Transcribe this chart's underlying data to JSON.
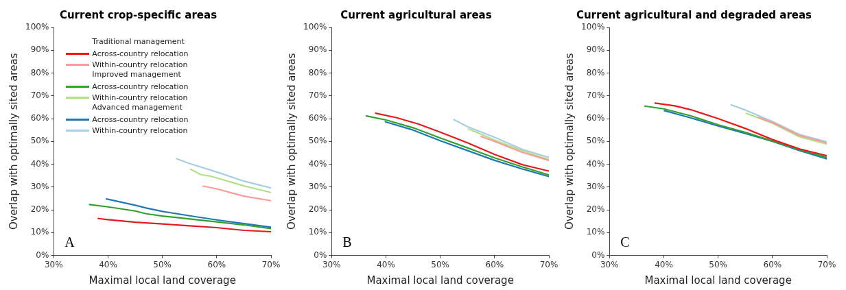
{
  "chart_data": [
    {
      "type": "line",
      "title": "Current crop-specific areas",
      "xlabel": "Maximal local land coverage",
      "ylabel": "Overlap with optimally sited areas",
      "xlim": [
        30,
        70
      ],
      "ylim": [
        0,
        100
      ],
      "xticks": [
        {
          "value": 30,
          "label": "30%"
        },
        {
          "value": 40,
          "label": "40%"
        },
        {
          "value": 50,
          "label": "50%"
        },
        {
          "value": 60,
          "label": "60%"
        },
        {
          "value": 70,
          "label": "70%"
        }
      ],
      "yticks": [
        {
          "value": 0,
          "label": "0%"
        },
        {
          "value": 10,
          "label": "10%"
        },
        {
          "value": 20,
          "label": "20%"
        },
        {
          "value": 30,
          "label": "30%"
        },
        {
          "value": 40,
          "label": "40%"
        },
        {
          "value": 50,
          "label": "50%"
        },
        {
          "value": 60,
          "label": "60%"
        },
        {
          "value": 70,
          "label": "70%"
        },
        {
          "value": 80,
          "label": "80%"
        },
        {
          "value": 90,
          "label": "90%"
        },
        {
          "value": 100,
          "label": "100%"
        }
      ],
      "grid": false,
      "marker": "none",
      "line_style": "solid",
      "legend": "top left",
      "annotations": [
        "A",
        "Traditional management",
        "Improved management",
        "Advanced management"
      ],
      "series": [
        {
          "name": "Across-country relocation",
          "color": "#e41a1c",
          "x": [
            38.2,
            40,
            45,
            50,
            55,
            60,
            65,
            70
          ],
          "values": [
            16.2,
            15.7,
            14.6,
            13.8,
            13.0,
            12.2,
            11.0,
            10.4
          ]
        },
        {
          "name": "Within-country relocation",
          "color": "#fb9a99",
          "x": [
            57.5,
            60,
            65,
            70
          ],
          "values": [
            30.4,
            29.2,
            26.0,
            24.0
          ]
        },
        {
          "name": "Across-country relocation",
          "color": "#33a02c",
          "x": [
            36.6,
            40,
            45,
            47,
            50,
            55,
            60,
            65,
            70
          ],
          "values": [
            22.3,
            21.3,
            19.5,
            18.3,
            17.3,
            16.0,
            14.7,
            13.4,
            11.8
          ]
        },
        {
          "name": "Within-country relocation",
          "color": "#b2df8a",
          "x": [
            55.2,
            57,
            59,
            60,
            65,
            70
          ],
          "values": [
            37.8,
            35.5,
            34.7,
            34.0,
            30.5,
            27.6
          ]
        },
        {
          "name": "Across-country relocation",
          "color": "#1f78b4",
          "x": [
            39.7,
            45,
            47,
            50,
            55,
            60,
            65,
            70
          ],
          "values": [
            24.8,
            22.0,
            20.8,
            19.3,
            17.4,
            15.6,
            14.0,
            12.4
          ]
        },
        {
          "name": "Within-country relocation",
          "color": "#a6cee3",
          "x": [
            52.6,
            55,
            60,
            65,
            70
          ],
          "values": [
            42.4,
            40.3,
            36.6,
            32.6,
            29.6
          ]
        }
      ]
    },
    {
      "type": "line",
      "title": "Current agricultural areas",
      "xlabel": "Maximal local land coverage",
      "ylabel": "Overlap with optimally sited areas",
      "xlim": [
        30,
        70
      ],
      "ylim": [
        0,
        100
      ],
      "xticks": [
        {
          "value": 30,
          "label": "30%"
        },
        {
          "value": 40,
          "label": "40%"
        },
        {
          "value": 50,
          "label": "50%"
        },
        {
          "value": 60,
          "label": "60%"
        },
        {
          "value": 70,
          "label": "70%"
        }
      ],
      "yticks": [
        {
          "value": 0,
          "label": "0%"
        },
        {
          "value": 10,
          "label": "10%"
        },
        {
          "value": 20,
          "label": "20%"
        },
        {
          "value": 30,
          "label": "30%"
        },
        {
          "value": 40,
          "label": "40%"
        },
        {
          "value": 50,
          "label": "50%"
        },
        {
          "value": 60,
          "label": "60%"
        },
        {
          "value": 70,
          "label": "70%"
        },
        {
          "value": 80,
          "label": "80%"
        },
        {
          "value": 90,
          "label": "90%"
        },
        {
          "value": 100,
          "label": "100%"
        }
      ],
      "grid": false,
      "marker": "none",
      "line_style": "solid",
      "annotations": [
        "B"
      ],
      "series": [
        {
          "color": "#e41a1c",
          "x": [
            38.1,
            42,
            46,
            50,
            55,
            60,
            65,
            70
          ],
          "values": [
            62.4,
            60.4,
            57.6,
            54.1,
            49.4,
            44.3,
            39.9,
            37.0
          ]
        },
        {
          "color": "#fb9a99",
          "x": [
            57.5,
            60,
            65,
            70
          ],
          "values": [
            52.2,
            50.0,
            45.3,
            41.7
          ]
        },
        {
          "color": "#33a02c",
          "x": [
            36.4,
            40,
            45,
            50,
            55,
            60,
            65,
            70
          ],
          "values": [
            61.2,
            59.4,
            56.0,
            51.5,
            47.2,
            42.8,
            38.9,
            35.3
          ]
        },
        {
          "color": "#b2df8a",
          "x": [
            55.2,
            60,
            65,
            70
          ],
          "values": [
            55.5,
            50.6,
            46.0,
            42.0
          ]
        },
        {
          "color": "#1f78b4",
          "x": [
            39.9,
            45,
            50,
            55,
            60,
            65,
            70
          ],
          "values": [
            58.6,
            55.0,
            50.3,
            46.0,
            41.7,
            38.0,
            34.6
          ]
        },
        {
          "color": "#a6cee3",
          "x": [
            52.5,
            55,
            60,
            65,
            70
          ],
          "values": [
            59.6,
            56.5,
            51.8,
            46.6,
            43.0
          ]
        }
      ]
    },
    {
      "type": "line",
      "title": "Current agricultural and degraded areas",
      "xlabel": "Maximal local land coverage",
      "ylabel": "Overlap with optimally sited areas",
      "xlim": [
        30,
        70
      ],
      "ylim": [
        0,
        100
      ],
      "xticks": [
        {
          "value": 30,
          "label": "30%"
        },
        {
          "value": 40,
          "label": "40%"
        },
        {
          "value": 50,
          "label": "50%"
        },
        {
          "value": 60,
          "label": "60%"
        },
        {
          "value": 70,
          "label": "70%"
        }
      ],
      "yticks": [
        {
          "value": 0,
          "label": "0%"
        },
        {
          "value": 10,
          "label": "10%"
        },
        {
          "value": 20,
          "label": "20%"
        },
        {
          "value": 30,
          "label": "30%"
        },
        {
          "value": 40,
          "label": "40%"
        },
        {
          "value": 50,
          "label": "50%"
        },
        {
          "value": 60,
          "label": "60%"
        },
        {
          "value": 70,
          "label": "70%"
        },
        {
          "value": 80,
          "label": "80%"
        },
        {
          "value": 90,
          "label": "90%"
        },
        {
          "value": 100,
          "label": "100%"
        }
      ],
      "grid": false,
      "marker": "none",
      "line_style": "solid",
      "annotations": [
        "C"
      ],
      "series": [
        {
          "color": "#e41a1c",
          "x": [
            38.4,
            42,
            45,
            50,
            55,
            60,
            65,
            70
          ],
          "values": [
            66.8,
            65.6,
            63.9,
            60.0,
            55.7,
            50.8,
            46.7,
            43.7
          ]
        },
        {
          "color": "#fb9a99",
          "x": [
            57.5,
            60,
            65,
            70
          ],
          "values": [
            60.5,
            58.3,
            52.6,
            49.4
          ]
        },
        {
          "color": "#33a02c",
          "x": [
            36.5,
            40,
            45,
            50,
            55,
            60,
            65,
            70
          ],
          "values": [
            65.5,
            64.3,
            61.2,
            57.3,
            54.0,
            50.2,
            46.4,
            43.0
          ]
        },
        {
          "color": "#b2df8a",
          "x": [
            55.2,
            60,
            65,
            70
          ],
          "values": [
            62.3,
            58.0,
            52.0,
            48.8
          ]
        },
        {
          "color": "#1f78b4",
          "x": [
            40.1,
            45,
            50,
            55,
            60,
            65,
            70
          ],
          "values": [
            63.5,
            60.3,
            56.8,
            53.5,
            50.0,
            46.0,
            42.4
          ]
        },
        {
          "color": "#a6cee3",
          "x": [
            52.4,
            55,
            60,
            65,
            70
          ],
          "values": [
            66.0,
            63.8,
            58.7,
            53.0,
            49.8
          ]
        }
      ]
    }
  ]
}
